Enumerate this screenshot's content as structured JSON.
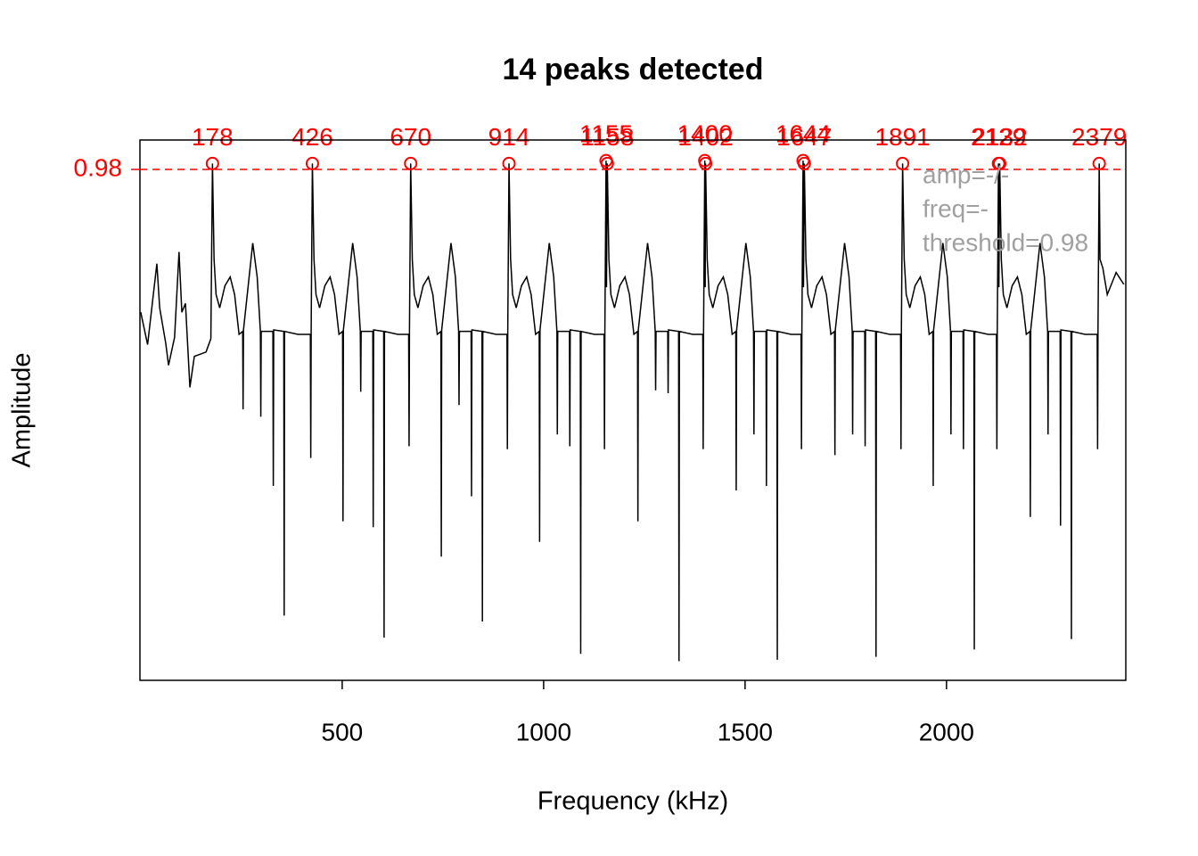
{
  "chart_data": {
    "type": "line",
    "title": "14 peaks detected",
    "x_label": "Frequency (kHz)",
    "y_label": "Amplitude",
    "xlim": [
      -2,
      2445
    ],
    "ylim": [
      0.633,
      1.0
    ],
    "xticks": [
      500,
      1000,
      1500,
      2000
    ],
    "yticks": [
      0.98
    ],
    "ytick_color": "#ff0000",
    "threshold": 0.98,
    "threshold_color": "#ff0000",
    "annotations": [
      "amp=-/-",
      "freq=-",
      "threshold=0.98"
    ],
    "annotation_color": "#a0a0a0",
    "spectrum": {
      "color": "#000000",
      "x": [
        0,
        17,
        40,
        47,
        62,
        69,
        84,
        95,
        102,
        111,
        122,
        133,
        162,
        174,
        178,
        182,
        187,
        196,
        209,
        222,
        233,
        244,
        253,
        254,
        255,
        278,
        289,
        297,
        298,
        299,
        328,
        329,
        330,
        355,
        356,
        357,
        390,
        421,
        422,
        423,
        426,
        430,
        435,
        444,
        457,
        470,
        481,
        492,
        501,
        502,
        503,
        526,
        537,
        545,
        546,
        547,
        576,
        577,
        578,
        603,
        604,
        605,
        638,
        665,
        666,
        667,
        670,
        674,
        679,
        688,
        701,
        714,
        725,
        736,
        745,
        746,
        747,
        770,
        781,
        789,
        790,
        791,
        820,
        821,
        822,
        847,
        848,
        849,
        882,
        909,
        910,
        911,
        914,
        918,
        923,
        932,
        945,
        958,
        969,
        980,
        989,
        990,
        991,
        1014,
        1025,
        1033,
        1034,
        1035,
        1064,
        1065,
        1066,
        1091,
        1092,
        1093,
        1126,
        1150,
        1151,
        1152,
        1155,
        1156,
        1158,
        1162,
        1167,
        1176,
        1189,
        1202,
        1213,
        1224,
        1233,
        1234,
        1235,
        1258,
        1269,
        1277,
        1278,
        1279,
        1308,
        1309,
        1310,
        1335,
        1336,
        1337,
        1370,
        1395,
        1396,
        1397,
        1400,
        1401,
        1402,
        1406,
        1411,
        1420,
        1433,
        1446,
        1457,
        1468,
        1477,
        1478,
        1479,
        1502,
        1513,
        1521,
        1522,
        1523,
        1552,
        1553,
        1554,
        1579,
        1580,
        1581,
        1614,
        1639,
        1640,
        1641,
        1644,
        1645,
        1647,
        1651,
        1656,
        1665,
        1678,
        1691,
        1702,
        1713,
        1722,
        1723,
        1724,
        1747,
        1758,
        1766,
        1767,
        1768,
        1797,
        1798,
        1799,
        1824,
        1825,
        1826,
        1859,
        1886,
        1887,
        1888,
        1891,
        1895,
        1900,
        1909,
        1922,
        1935,
        1946,
        1957,
        1966,
        1967,
        1968,
        1991,
        2002,
        2010,
        2011,
        2012,
        2041,
        2042,
        2043,
        2068,
        2069,
        2070,
        2103,
        2124,
        2125,
        2126,
        2129,
        2130,
        2132,
        2136,
        2141,
        2150,
        2163,
        2176,
        2187,
        2198,
        2207,
        2208,
        2209,
        2232,
        2243,
        2251,
        2252,
        2253,
        2282,
        2283,
        2284,
        2309,
        2310,
        2311,
        2344,
        2374,
        2375,
        2376,
        2379,
        2381,
        2388,
        2399,
        2421,
        2440
      ],
      "values": [
        0.883,
        0.861,
        0.916,
        0.886,
        0.862,
        0.847,
        0.866,
        0.924,
        0.883,
        0.889,
        0.832,
        0.853,
        0.856,
        0.865,
        0.984,
        0.919,
        0.895,
        0.886,
        0.901,
        0.907,
        0.895,
        0.868,
        0.87,
        0.817,
        0.871,
        0.93,
        0.907,
        0.87,
        0.812,
        0.87,
        0.87,
        0.765,
        0.871,
        0.87,
        0.677,
        0.87,
        0.868,
        0.868,
        0.784,
        0.871,
        0.984,
        0.919,
        0.895,
        0.886,
        0.901,
        0.907,
        0.895,
        0.868,
        0.87,
        0.741,
        0.871,
        0.93,
        0.907,
        0.87,
        0.829,
        0.87,
        0.87,
        0.737,
        0.871,
        0.87,
        0.662,
        0.87,
        0.868,
        0.868,
        0.792,
        0.871,
        0.984,
        0.919,
        0.895,
        0.886,
        0.901,
        0.907,
        0.895,
        0.868,
        0.87,
        0.717,
        0.871,
        0.93,
        0.907,
        0.87,
        0.82,
        0.87,
        0.87,
        0.758,
        0.871,
        0.87,
        0.673,
        0.87,
        0.868,
        0.868,
        0.79,
        0.871,
        0.984,
        0.919,
        0.895,
        0.886,
        0.901,
        0.907,
        0.895,
        0.868,
        0.87,
        0.727,
        0.871,
        0.93,
        0.907,
        0.87,
        0.8,
        0.87,
        0.87,
        0.792,
        0.871,
        0.87,
        0.651,
        0.87,
        0.868,
        0.868,
        0.79,
        0.871,
        0.986,
        0.9,
        0.984,
        0.919,
        0.895,
        0.886,
        0.901,
        0.907,
        0.895,
        0.868,
        0.87,
        0.741,
        0.871,
        0.93,
        0.907,
        0.87,
        0.83,
        0.87,
        0.87,
        0.828,
        0.871,
        0.87,
        0.646,
        0.87,
        0.868,
        0.868,
        0.79,
        0.871,
        0.986,
        0.9,
        0.984,
        0.919,
        0.895,
        0.886,
        0.901,
        0.907,
        0.895,
        0.868,
        0.87,
        0.762,
        0.871,
        0.93,
        0.907,
        0.87,
        0.8,
        0.87,
        0.87,
        0.765,
        0.871,
        0.87,
        0.647,
        0.87,
        0.868,
        0.868,
        0.79,
        0.871,
        0.986,
        0.9,
        0.984,
        0.919,
        0.895,
        0.886,
        0.901,
        0.907,
        0.895,
        0.868,
        0.87,
        0.786,
        0.871,
        0.93,
        0.907,
        0.87,
        0.8,
        0.87,
        0.87,
        0.792,
        0.871,
        0.87,
        0.649,
        0.87,
        0.868,
        0.868,
        0.79,
        0.871,
        0.984,
        0.919,
        0.895,
        0.886,
        0.901,
        0.907,
        0.895,
        0.868,
        0.87,
        0.765,
        0.871,
        0.93,
        0.907,
        0.87,
        0.8,
        0.87,
        0.87,
        0.79,
        0.871,
        0.87,
        0.654,
        0.87,
        0.868,
        0.868,
        0.79,
        0.871,
        0.984,
        0.9,
        0.984,
        0.919,
        0.895,
        0.886,
        0.901,
        0.907,
        0.895,
        0.868,
        0.87,
        0.744,
        0.871,
        0.93,
        0.907,
        0.87,
        0.8,
        0.87,
        0.87,
        0.738,
        0.871,
        0.87,
        0.661,
        0.87,
        0.868,
        0.868,
        0.79,
        0.871,
        0.984,
        0.919,
        0.913,
        0.895,
        0.91,
        0.902
      ]
    },
    "peaks": {
      "color": "#ff0000",
      "x": [
        178,
        426,
        670,
        914,
        1155,
        1158,
        1400,
        1402,
        1644,
        1647,
        1891,
        2129,
        2132,
        2379
      ],
      "values": [
        0.984,
        0.984,
        0.984,
        0.984,
        0.986,
        0.984,
        0.986,
        0.984,
        0.986,
        0.984,
        0.984,
        0.984,
        0.984,
        0.984
      ]
    }
  }
}
